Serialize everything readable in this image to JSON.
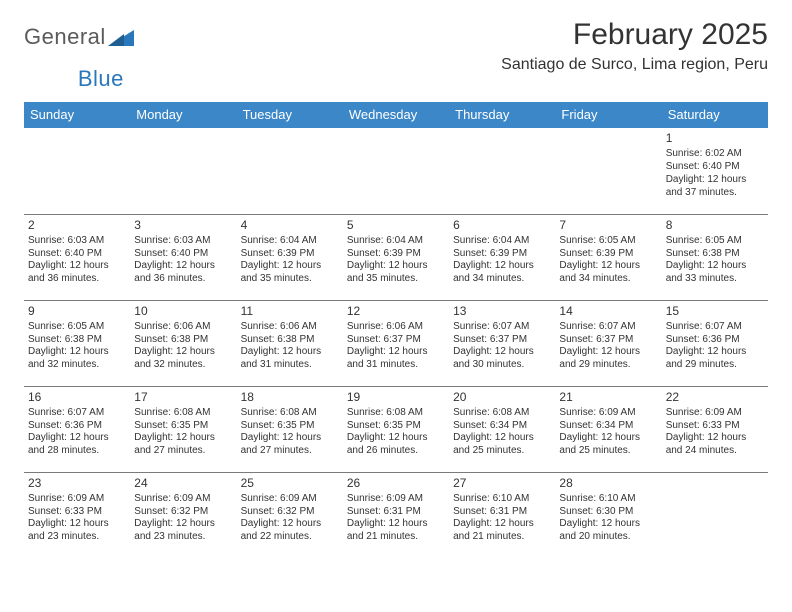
{
  "logo": {
    "text_general": "General",
    "text_blue": "Blue",
    "icon_color": "#2a77bb",
    "text_gray_color": "#5b5b5b"
  },
  "header": {
    "month_title": "February 2025",
    "location": "Santiago de Surco, Lima region, Peru"
  },
  "colors": {
    "header_bg": "#3b87c8",
    "header_text": "#ffffff",
    "border": "#7a7a7a",
    "body_text": "#333333",
    "background": "#ffffff"
  },
  "day_headers": [
    "Sunday",
    "Monday",
    "Tuesday",
    "Wednesday",
    "Thursday",
    "Friday",
    "Saturday"
  ],
  "weeks": [
    [
      null,
      null,
      null,
      null,
      null,
      null,
      {
        "n": "1",
        "sr": "Sunrise: 6:02 AM",
        "ss": "Sunset: 6:40 PM",
        "dl1": "Daylight: 12 hours",
        "dl2": "and 37 minutes."
      }
    ],
    [
      {
        "n": "2",
        "sr": "Sunrise: 6:03 AM",
        "ss": "Sunset: 6:40 PM",
        "dl1": "Daylight: 12 hours",
        "dl2": "and 36 minutes."
      },
      {
        "n": "3",
        "sr": "Sunrise: 6:03 AM",
        "ss": "Sunset: 6:40 PM",
        "dl1": "Daylight: 12 hours",
        "dl2": "and 36 minutes."
      },
      {
        "n": "4",
        "sr": "Sunrise: 6:04 AM",
        "ss": "Sunset: 6:39 PM",
        "dl1": "Daylight: 12 hours",
        "dl2": "and 35 minutes."
      },
      {
        "n": "5",
        "sr": "Sunrise: 6:04 AM",
        "ss": "Sunset: 6:39 PM",
        "dl1": "Daylight: 12 hours",
        "dl2": "and 35 minutes."
      },
      {
        "n": "6",
        "sr": "Sunrise: 6:04 AM",
        "ss": "Sunset: 6:39 PM",
        "dl1": "Daylight: 12 hours",
        "dl2": "and 34 minutes."
      },
      {
        "n": "7",
        "sr": "Sunrise: 6:05 AM",
        "ss": "Sunset: 6:39 PM",
        "dl1": "Daylight: 12 hours",
        "dl2": "and 34 minutes."
      },
      {
        "n": "8",
        "sr": "Sunrise: 6:05 AM",
        "ss": "Sunset: 6:38 PM",
        "dl1": "Daylight: 12 hours",
        "dl2": "and 33 minutes."
      }
    ],
    [
      {
        "n": "9",
        "sr": "Sunrise: 6:05 AM",
        "ss": "Sunset: 6:38 PM",
        "dl1": "Daylight: 12 hours",
        "dl2": "and 32 minutes."
      },
      {
        "n": "10",
        "sr": "Sunrise: 6:06 AM",
        "ss": "Sunset: 6:38 PM",
        "dl1": "Daylight: 12 hours",
        "dl2": "and 32 minutes."
      },
      {
        "n": "11",
        "sr": "Sunrise: 6:06 AM",
        "ss": "Sunset: 6:38 PM",
        "dl1": "Daylight: 12 hours",
        "dl2": "and 31 minutes."
      },
      {
        "n": "12",
        "sr": "Sunrise: 6:06 AM",
        "ss": "Sunset: 6:37 PM",
        "dl1": "Daylight: 12 hours",
        "dl2": "and 31 minutes."
      },
      {
        "n": "13",
        "sr": "Sunrise: 6:07 AM",
        "ss": "Sunset: 6:37 PM",
        "dl1": "Daylight: 12 hours",
        "dl2": "and 30 minutes."
      },
      {
        "n": "14",
        "sr": "Sunrise: 6:07 AM",
        "ss": "Sunset: 6:37 PM",
        "dl1": "Daylight: 12 hours",
        "dl2": "and 29 minutes."
      },
      {
        "n": "15",
        "sr": "Sunrise: 6:07 AM",
        "ss": "Sunset: 6:36 PM",
        "dl1": "Daylight: 12 hours",
        "dl2": "and 29 minutes."
      }
    ],
    [
      {
        "n": "16",
        "sr": "Sunrise: 6:07 AM",
        "ss": "Sunset: 6:36 PM",
        "dl1": "Daylight: 12 hours",
        "dl2": "and 28 minutes."
      },
      {
        "n": "17",
        "sr": "Sunrise: 6:08 AM",
        "ss": "Sunset: 6:35 PM",
        "dl1": "Daylight: 12 hours",
        "dl2": "and 27 minutes."
      },
      {
        "n": "18",
        "sr": "Sunrise: 6:08 AM",
        "ss": "Sunset: 6:35 PM",
        "dl1": "Daylight: 12 hours",
        "dl2": "and 27 minutes."
      },
      {
        "n": "19",
        "sr": "Sunrise: 6:08 AM",
        "ss": "Sunset: 6:35 PM",
        "dl1": "Daylight: 12 hours",
        "dl2": "and 26 minutes."
      },
      {
        "n": "20",
        "sr": "Sunrise: 6:08 AM",
        "ss": "Sunset: 6:34 PM",
        "dl1": "Daylight: 12 hours",
        "dl2": "and 25 minutes."
      },
      {
        "n": "21",
        "sr": "Sunrise: 6:09 AM",
        "ss": "Sunset: 6:34 PM",
        "dl1": "Daylight: 12 hours",
        "dl2": "and 25 minutes."
      },
      {
        "n": "22",
        "sr": "Sunrise: 6:09 AM",
        "ss": "Sunset: 6:33 PM",
        "dl1": "Daylight: 12 hours",
        "dl2": "and 24 minutes."
      }
    ],
    [
      {
        "n": "23",
        "sr": "Sunrise: 6:09 AM",
        "ss": "Sunset: 6:33 PM",
        "dl1": "Daylight: 12 hours",
        "dl2": "and 23 minutes."
      },
      {
        "n": "24",
        "sr": "Sunrise: 6:09 AM",
        "ss": "Sunset: 6:32 PM",
        "dl1": "Daylight: 12 hours",
        "dl2": "and 23 minutes."
      },
      {
        "n": "25",
        "sr": "Sunrise: 6:09 AM",
        "ss": "Sunset: 6:32 PM",
        "dl1": "Daylight: 12 hours",
        "dl2": "and 22 minutes."
      },
      {
        "n": "26",
        "sr": "Sunrise: 6:09 AM",
        "ss": "Sunset: 6:31 PM",
        "dl1": "Daylight: 12 hours",
        "dl2": "and 21 minutes."
      },
      {
        "n": "27",
        "sr": "Sunrise: 6:10 AM",
        "ss": "Sunset: 6:31 PM",
        "dl1": "Daylight: 12 hours",
        "dl2": "and 21 minutes."
      },
      {
        "n": "28",
        "sr": "Sunrise: 6:10 AM",
        "ss": "Sunset: 6:30 PM",
        "dl1": "Daylight: 12 hours",
        "dl2": "and 20 minutes."
      },
      null
    ]
  ]
}
